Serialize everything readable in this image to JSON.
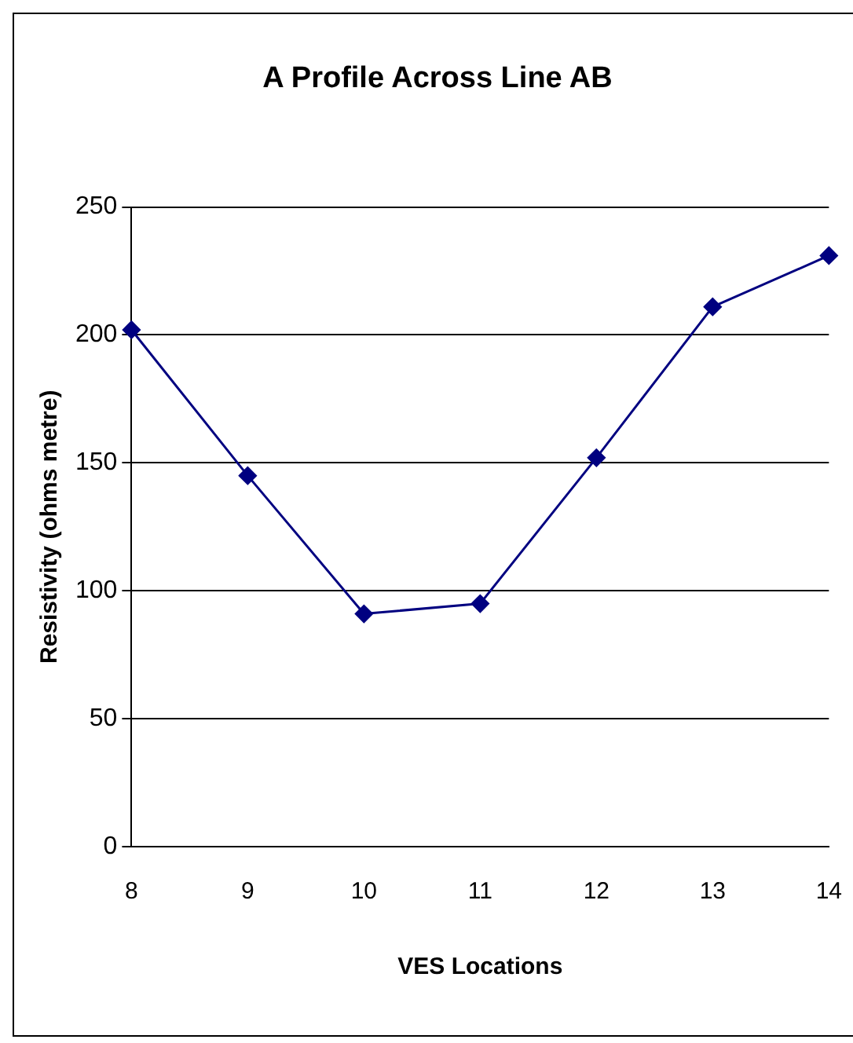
{
  "chart_data": {
    "type": "line",
    "title": "A Profile Across Line AB",
    "xlabel": "VES Locations",
    "ylabel": "Resistivity (ohms metre)",
    "categories": [
      "8",
      "9",
      "10",
      "11",
      "12",
      "13",
      "14"
    ],
    "series": [
      {
        "color": "#000080",
        "values": [
          202,
          145,
          91,
          95,
          152,
          211,
          231
        ]
      }
    ],
    "ylim": [
      0,
      250
    ],
    "yticks": [
      0,
      50,
      100,
      150,
      200,
      250
    ],
    "grid": "y",
    "legend": false,
    "marker": "diamond",
    "line_style": "solid"
  }
}
